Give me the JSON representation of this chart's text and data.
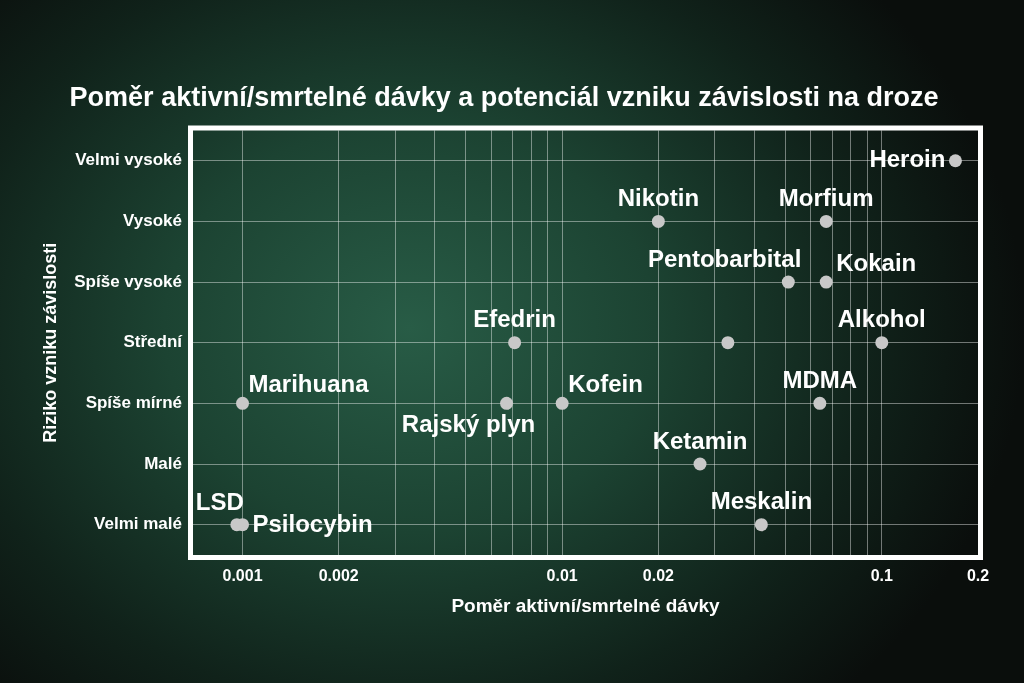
{
  "chart_data": {
    "type": "scatter",
    "title": "Poměr aktivní/smrtelné dávky a potenciál vzniku závislosti na droze",
    "xlabel": "Poměr aktivní/smrtelné dávky",
    "ylabel": "Riziko vzniku závislosti",
    "log": "x",
    "orientation": "horizontal",
    "marker": "circle",
    "categories": [
      "Velmi vysoké",
      "Vysoké",
      "Spíše vysoké",
      "Střední",
      "Spíše mírné",
      "Malé",
      "Velmi malé"
    ],
    "series": [
      {
        "name": "Heroin",
        "color": "#c8c8c8",
        "values": [
          0.17,
          null,
          null,
          null,
          null,
          null,
          null
        ]
      },
      {
        "name": "Nikotin",
        "color": "#c8c8c8",
        "values": [
          null,
          0.02,
          null,
          null,
          null,
          null,
          null
        ]
      },
      {
        "name": "Morfium",
        "color": "#c8c8c8",
        "values": [
          null,
          0.067,
          null,
          null,
          null,
          null,
          null
        ]
      },
      {
        "name": "Pentobarbital",
        "color": "#c8c8c8",
        "values": [
          null,
          null,
          0.051,
          null,
          null,
          null,
          null
        ]
      },
      {
        "name": "Kokain",
        "color": "#c8c8c8",
        "values": [
          null,
          null,
          0.067,
          null,
          null,
          null,
          null
        ]
      },
      {
        "name": "Efedrin",
        "color": "#c8c8c8",
        "values": [
          null,
          null,
          null,
          0.0071,
          null,
          null,
          null
        ]
      },
      {
        "color": "#c8c8c8",
        "values": [
          null,
          null,
          null,
          0.033,
          null,
          null,
          null
        ]
      },
      {
        "name": "Alkohol",
        "color": "#c8c8c8",
        "values": [
          null,
          null,
          null,
          0.1,
          null,
          null,
          null
        ]
      },
      {
        "name": "Marihuana",
        "color": "#c8c8c8",
        "values": [
          null,
          null,
          null,
          null,
          0.001,
          null,
          null
        ]
      },
      {
        "name": "Rajský plyn",
        "color": "#c8c8c8",
        "values": [
          null,
          null,
          null,
          null,
          0.0067,
          null,
          null
        ]
      },
      {
        "name": "Kofein",
        "color": "#c8c8c8",
        "values": [
          null,
          null,
          null,
          null,
          0.01,
          null,
          null
        ]
      },
      {
        "name": "MDMA",
        "color": "#c8c8c8",
        "values": [
          null,
          null,
          null,
          null,
          0.064,
          null,
          null
        ]
      },
      {
        "name": "Ketamin",
        "color": "#c8c8c8",
        "values": [
          null,
          null,
          null,
          null,
          null,
          0.027,
          null
        ]
      },
      {
        "name": "Meskalin",
        "color": "#c8c8c8",
        "values": [
          null,
          null,
          null,
          null,
          null,
          null,
          0.042
        ]
      },
      {
        "name": "LSD",
        "color": "#c8c8c8",
        "values": [
          null,
          null,
          null,
          null,
          null,
          null,
          0.00096
        ]
      },
      {
        "name": "Psilocybin",
        "color": "#c8c8c8",
        "values": [
          null,
          null,
          null,
          null,
          null,
          null,
          0.001
        ]
      }
    ],
    "xlim": [
      0.0007,
      0.2
    ],
    "xticks": [
      0.001,
      0.002,
      {
        "value": 0.003,
        "label": null
      },
      {
        "value": 0.004,
        "label": null
      },
      {
        "value": 0.005,
        "label": null
      },
      {
        "value": 0.006,
        "label": null
      },
      {
        "value": 0.007,
        "label": null
      },
      {
        "value": 0.008,
        "label": null
      },
      {
        "value": 0.009,
        "label": null
      },
      0.01,
      0.02,
      {
        "value": 0.03,
        "label": null
      },
      {
        "value": 0.04,
        "label": null
      },
      {
        "value": 0.05,
        "label": null
      },
      {
        "value": 0.06,
        "label": null
      },
      {
        "value": 0.07,
        "label": null
      },
      {
        "value": 0.08,
        "label": null
      },
      {
        "value": 0.09,
        "label": null
      },
      0.1,
      0.2
    ],
    "grid": true
  }
}
